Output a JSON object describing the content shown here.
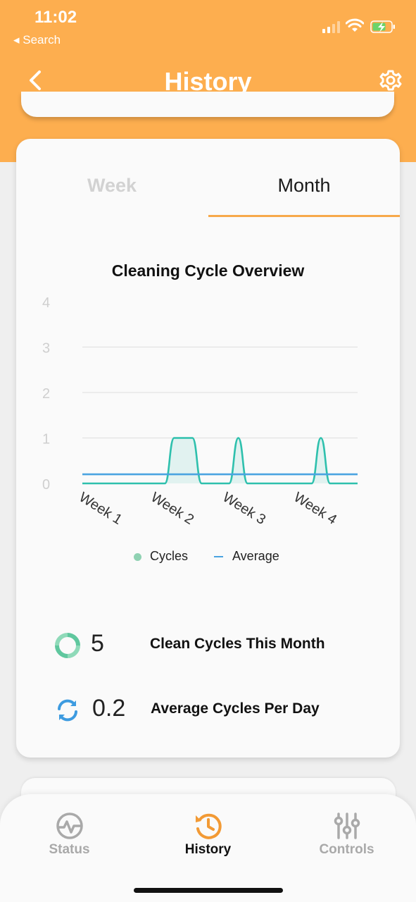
{
  "status_bar": {
    "time": "11:02",
    "back_app": "◂ Search"
  },
  "header": {
    "title": "History"
  },
  "tabs": [
    {
      "label": "Week",
      "active": false
    },
    {
      "label": "Month",
      "active": true
    }
  ],
  "chart_data": {
    "type": "area",
    "title": "Cleaning Cycle Overview",
    "x": [
      "Week 1",
      "Week 2",
      "Week 3",
      "Week 4"
    ],
    "yticks": [
      0,
      1,
      2,
      3,
      4
    ],
    "ylim": [
      0,
      4
    ],
    "grid": true,
    "legend_position": "bottom",
    "series": [
      {
        "name": "Cycles",
        "color": "#2ec0ad",
        "daily_values": [
          0,
          0,
          0,
          0,
          0,
          0,
          0,
          0,
          0,
          0,
          1,
          1,
          1,
          0,
          0,
          0,
          0,
          1,
          0,
          0,
          0,
          0,
          0,
          0,
          0,
          0,
          1,
          0,
          0,
          0,
          0
        ]
      },
      {
        "name": "Average",
        "color": "#4aa3e0",
        "value": 0.2
      }
    ]
  },
  "legend": {
    "cycles": "Cycles",
    "average": "Average"
  },
  "stats": [
    {
      "value": "5",
      "label": "Clean Cycles This Month",
      "icon": "refresh-circle-icon",
      "color": "#5fc79e"
    },
    {
      "value": "0.2",
      "label": "Average Cycles Per Day",
      "icon": "sync-icon",
      "color": "#3d9be0"
    }
  ],
  "tabbar": [
    {
      "label": "Status",
      "icon": "activity-icon",
      "active": false
    },
    {
      "label": "History",
      "icon": "history-icon",
      "active": true
    },
    {
      "label": "Controls",
      "icon": "sliders-icon",
      "active": false
    }
  ],
  "colors": {
    "accent": "#fdae4f",
    "inactive": "#a9a9a9"
  }
}
